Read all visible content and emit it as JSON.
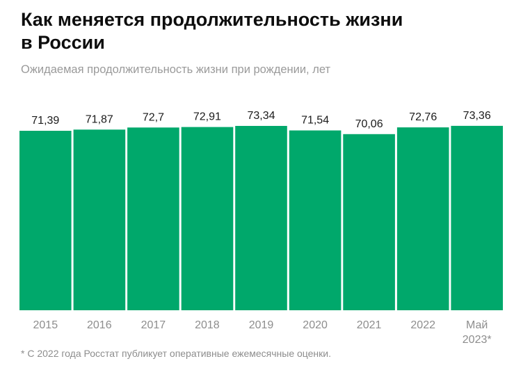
{
  "title_line1": "Как меняется продолжительность жизни",
  "title_line2": "в России",
  "subtitle": "Ожидаемая продолжительность жизни при рождении, лет",
  "footnote": "* С 2022 года Росстат публикует оперативные ежемесячные оценки.",
  "colors": {
    "bar": "#00a86b",
    "background": "#ffffff"
  },
  "chart_data": {
    "type": "bar",
    "categories": [
      "2015",
      "2016",
      "2017",
      "2018",
      "2019",
      "2020",
      "2021",
      "2022",
      "Май 2023*"
    ],
    "values": [
      71.39,
      71.87,
      72.7,
      72.91,
      73.34,
      71.54,
      70.06,
      72.76,
      73.36
    ],
    "value_labels": [
      "71,39",
      "71,87",
      "72,7",
      "72,91",
      "73,34",
      "71,54",
      "70,06",
      "72,76",
      "73,36"
    ],
    "ylim": [
      0,
      75
    ],
    "grid": false
  }
}
